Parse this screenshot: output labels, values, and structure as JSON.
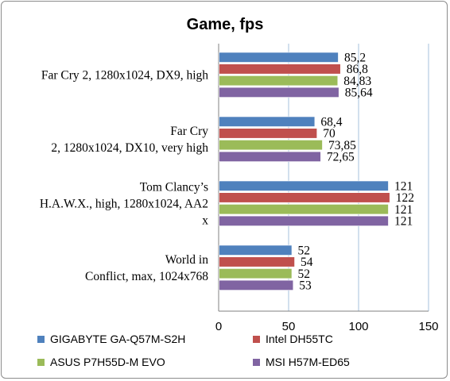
{
  "chart_data": {
    "type": "bar",
    "orientation": "horizontal",
    "title": "Game, fps",
    "categories": [
      [
        "Far Cry 2, 1280x1024, DX9, high"
      ],
      [
        "Far Cry",
        "2, 1280x1024, DX10, very high"
      ],
      [
        "Tom Clancy’s",
        "H.A.W.X., high, 1280x1024, AA2",
        "x"
      ],
      [
        "World  in",
        "Conflict, max, 1024x768"
      ]
    ],
    "series": [
      {
        "name": "GIGABYTE GA-Q57M-S2H",
        "color": "#4f81bd",
        "values": [
          85.2,
          68.4,
          121,
          52
        ],
        "labels": [
          "85,2",
          "68,4",
          "121",
          "52"
        ]
      },
      {
        "name": "Intel DH55TC",
        "color": "#c0504d",
        "values": [
          86.8,
          70,
          122,
          54
        ],
        "labels": [
          "86,8",
          "70",
          "122",
          "54"
        ]
      },
      {
        "name": "ASUS P7H55D-M  EVO",
        "color": "#9bbb59",
        "values": [
          84.83,
          73.85,
          121,
          52
        ],
        "labels": [
          "84,83",
          "73,85",
          "121",
          "52"
        ]
      },
      {
        "name": "MSI H57M-ED65",
        "color": "#8064a2",
        "values": [
          85.64,
          72.65,
          121,
          53
        ],
        "labels": [
          "85,64",
          "72,65",
          "121",
          "53"
        ]
      }
    ],
    "xlim": [
      0,
      150
    ],
    "xticks": [
      "0",
      "50",
      "100",
      "150"
    ],
    "grid": true,
    "legend_position": "bottom"
  }
}
